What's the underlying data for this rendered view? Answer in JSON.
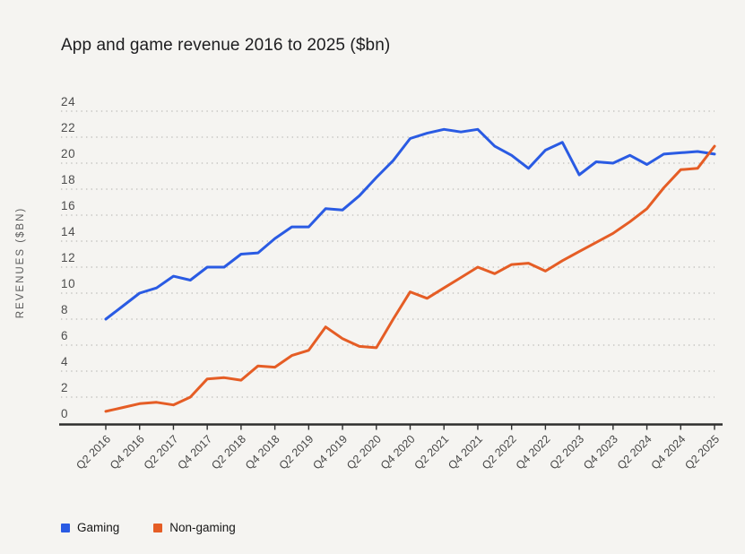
{
  "chart_data": {
    "type": "line",
    "title": "App and game revenue 2016 to 2025 ($bn)",
    "xlabel": "",
    "ylabel": "REVENUES ($BN)",
    "ylim": [
      0,
      24
    ],
    "y_ticks": [
      0,
      2,
      4,
      6,
      8,
      10,
      12,
      14,
      16,
      18,
      20,
      22,
      24
    ],
    "grid": "horizontal-dotted",
    "legend_position": "bottom-left",
    "x_tick_labels_shown": [
      "Q2 2016",
      "Q4 2016",
      "Q2 2017",
      "Q4 2017",
      "Q2 2018",
      "Q4 2018",
      "Q2 2019",
      "Q4 2019",
      "Q2 2020",
      "Q4 2020",
      "Q2 2021",
      "Q4 2021",
      "Q2 2022",
      "Q4 2022",
      "Q2 2023",
      "Q4 2023",
      "Q2 2024",
      "Q4 2024",
      "Q2 2025"
    ],
    "categories": [
      "Q2 2016",
      "Q3 2016",
      "Q4 2016",
      "Q1 2017",
      "Q2 2017",
      "Q3 2017",
      "Q4 2017",
      "Q1 2018",
      "Q2 2018",
      "Q3 2018",
      "Q4 2018",
      "Q1 2019",
      "Q2 2019",
      "Q3 2019",
      "Q4 2019",
      "Q1 2020",
      "Q2 2020",
      "Q3 2020",
      "Q4 2020",
      "Q1 2021",
      "Q2 2021",
      "Q3 2021",
      "Q4 2021",
      "Q1 2022",
      "Q2 2022",
      "Q3 2022",
      "Q4 2022",
      "Q1 2023",
      "Q2 2023",
      "Q3 2023",
      "Q4 2023",
      "Q1 2024",
      "Q2 2024",
      "Q3 2024",
      "Q4 2024",
      "Q1 2025",
      "Q2 2025"
    ],
    "series": [
      {
        "name": "Gaming",
        "color": "#2a5be3",
        "values": [
          8.0,
          9.0,
          10.0,
          10.4,
          11.3,
          11.0,
          12.0,
          12.0,
          13.0,
          13.1,
          14.2,
          15.1,
          15.1,
          16.5,
          16.4,
          17.5,
          18.9,
          20.2,
          21.9,
          22.3,
          22.6,
          22.4,
          22.6,
          21.3,
          20.6,
          19.6,
          21.0,
          21.6,
          19.1,
          20.1,
          20.0,
          20.6,
          19.9,
          20.7,
          20.8,
          20.9,
          20.7
        ]
      },
      {
        "name": "Non-gaming",
        "color": "#e55d25",
        "values": [
          0.9,
          1.2,
          1.5,
          1.6,
          1.4,
          2.0,
          3.4,
          3.5,
          3.3,
          4.4,
          4.3,
          5.2,
          5.6,
          7.4,
          6.5,
          5.9,
          5.8,
          8.0,
          10.1,
          9.6,
          10.4,
          11.2,
          12.0,
          11.5,
          12.2,
          12.3,
          11.7,
          12.5,
          13.2,
          13.9,
          14.6,
          15.5,
          16.5,
          18.1,
          19.5,
          19.6,
          21.3
        ]
      }
    ]
  },
  "legend": {
    "items": [
      {
        "label": "Gaming",
        "color": "#2a5be3"
      },
      {
        "label": "Non-gaming",
        "color": "#e55d25"
      }
    ]
  }
}
